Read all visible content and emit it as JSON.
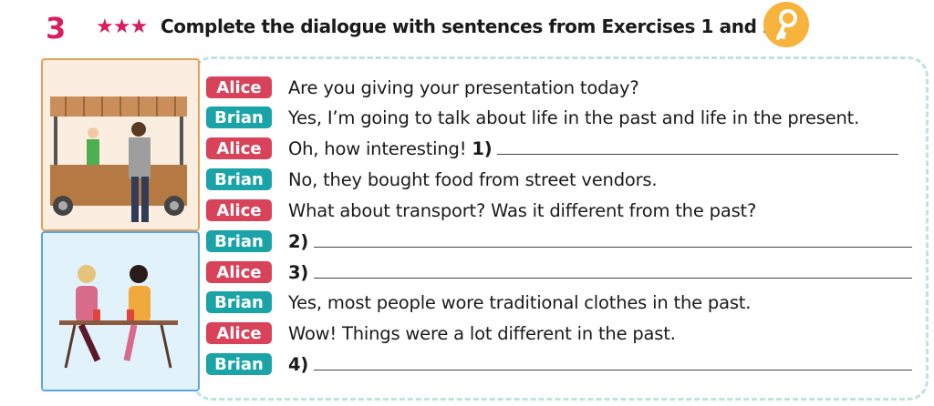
{
  "exercise": {
    "number": "3",
    "stars": "★★★",
    "title": "Complete the dialogue with sentences from Exercises 1 and 2.",
    "icon": "key-icon"
  },
  "colors": {
    "alice": "#d9435a",
    "brian": "#1ba4a7",
    "accent": "#d81e5b",
    "key": "#f7b33c"
  },
  "dialogue": [
    {
      "speaker": "Alice",
      "text": "Are you giving your presentation today?"
    },
    {
      "speaker": "Brian",
      "text": "Yes, I’m going to talk about life in the past and life in the present."
    },
    {
      "speaker": "Alice",
      "text": "Oh, how interesting!",
      "blank": "1)"
    },
    {
      "speaker": "Brian",
      "text": "No, they bought food from street vendors."
    },
    {
      "speaker": "Alice",
      "text": "What about transport? Was it different from the past?"
    },
    {
      "speaker": "Brian",
      "blank": "2)"
    },
    {
      "speaker": "Alice",
      "blank": "3)"
    },
    {
      "speaker": "Brian",
      "text": "Yes, most people wore traditional clothes in the past."
    },
    {
      "speaker": "Alice",
      "text": "Wow! Things were a lot different in the past."
    },
    {
      "speaker": "Brian",
      "blank": "4)"
    }
  ]
}
